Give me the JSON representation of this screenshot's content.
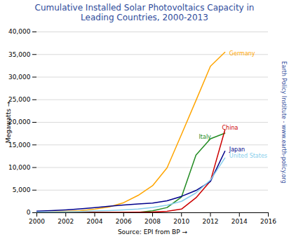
{
  "chart_data": {
    "type": "line",
    "title": "Cumulative Installed Solar Photovoltaics Capacity in\nLeading Countries, 2000-2013",
    "xlabel": "Source: EPI from BP",
    "ylabel": "Megawatts",
    "x": [
      2000,
      2001,
      2002,
      2003,
      2004,
      2005,
      2006,
      2007,
      2008,
      2009,
      2010,
      2011,
      2012,
      2013
    ],
    "series": [
      {
        "name": "Germany",
        "color": "#FFA500",
        "values": [
          114,
          175,
          296,
          431,
          794,
          1282,
          2220,
          3834,
          5979,
          9914,
          17319,
          24820,
          32411,
          35500
        ]
      },
      {
        "name": "Italy",
        "color": "#228B22",
        "values": [
          19,
          20,
          22,
          25,
          29,
          38,
          50,
          87,
          432,
          1142,
          3470,
          12750,
          16360,
          17600
        ]
      },
      {
        "name": "China",
        "color": "#CC0000",
        "values": [
          19,
          24,
          42,
          52,
          62,
          70,
          80,
          100,
          140,
          300,
          800,
          3300,
          7000,
          18300
        ]
      },
      {
        "name": "Japan",
        "color": "#00008B",
        "values": [
          330,
          453,
          627,
          860,
          1132,
          1422,
          1708,
          1919,
          2144,
          2627,
          3618,
          4914,
          6914,
          13599
        ]
      },
      {
        "name": "United States",
        "color": "#87CEEB",
        "values": [
          140,
          168,
          212,
          275,
          391,
          479,
          624,
          831,
          1169,
          1659,
          2520,
          4383,
          7220,
          12100
        ]
      }
    ],
    "xlim": [
      2000,
      2016
    ],
    "xticks": [
      2000,
      2002,
      2004,
      2006,
      2008,
      2010,
      2012,
      2014,
      2016
    ],
    "ylim": [
      0,
      40000
    ],
    "yticks": [
      0,
      {
        "value": 5000,
        "label": "5,000"
      },
      {
        "value": 10000,
        "label": "10,000"
      },
      {
        "value": 15000,
        "label": "15,000"
      },
      {
        "value": 20000,
        "label": "20,000"
      },
      {
        "value": 25000,
        "label": "25,000"
      },
      {
        "value": 30000,
        "label": "30,000"
      },
      {
        "value": 35000,
        "label": "35,000"
      },
      {
        "value": 40000,
        "label": "40,000"
      }
    ],
    "grid": true,
    "annotations": [
      {
        "text": "Germany",
        "x": 2013.3,
        "y": 35200,
        "color": "#FFA500"
      },
      {
        "text": "Italy",
        "x": 2011.2,
        "y": 16800,
        "color": "#228B22"
      },
      {
        "text": "China",
        "x": 2012.8,
        "y": 18700,
        "color": "#CC0000"
      },
      {
        "text": "Japan",
        "x": 2013.3,
        "y": 14000,
        "color": "#00008B"
      },
      {
        "text": "United States",
        "x": 2013.3,
        "y": 12500,
        "color": "#87CEEB"
      },
      {
        "text": "Earth Policy Institute - www.earth-policy.org",
        "color": "#2E4B9B"
      }
    ]
  }
}
